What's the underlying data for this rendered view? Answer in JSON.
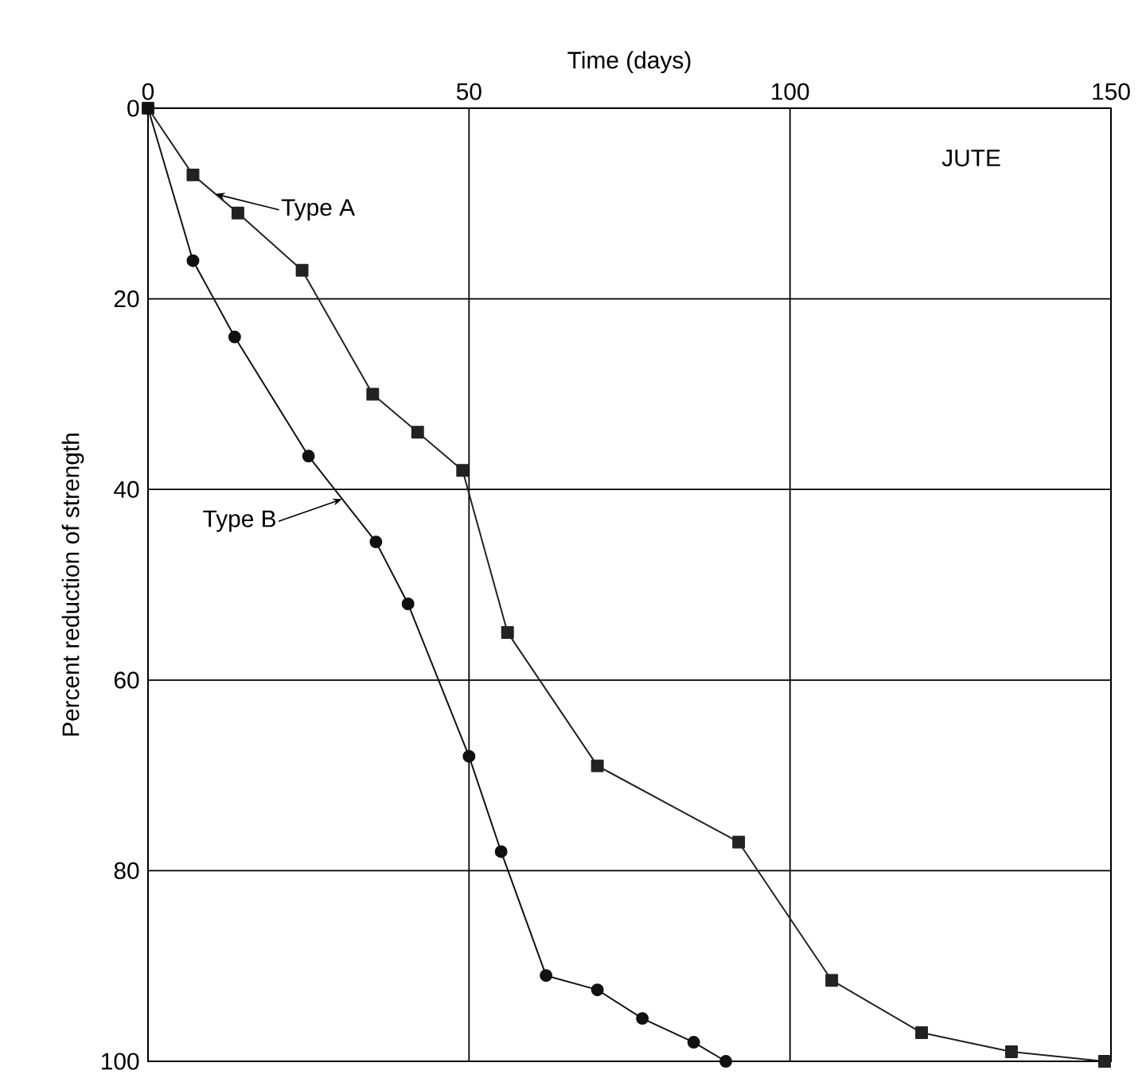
{
  "chart_data": {
    "type": "line",
    "xlabel": "Time (days)",
    "ylabel": "Percent reduction of strength",
    "annotations": [
      "JUTE"
    ],
    "xlim": [
      0,
      150
    ],
    "ylim": [
      100,
      0
    ],
    "xticks": [
      0,
      50,
      100,
      150
    ],
    "yticks": [
      0,
      20,
      40,
      60,
      80,
      100
    ],
    "grid": true,
    "line_style": "solid",
    "series": [
      {
        "name": "Type A",
        "color": "#222222",
        "marker": "square",
        "x": [
          0,
          7,
          14,
          24,
          35,
          42,
          49,
          56,
          70,
          92,
          106.5,
          120.5,
          134.5,
          149
        ],
        "values": [
          0,
          7,
          11,
          17,
          30,
          34,
          38,
          55,
          69,
          77,
          91.5,
          97,
          99,
          100
        ]
      },
      {
        "name": "Type B",
        "color": "#111111",
        "marker": "circle",
        "x": [
          0,
          7,
          13.5,
          25,
          35.5,
          40.5,
          50,
          55,
          62,
          70,
          77,
          85,
          90
        ],
        "values": [
          0,
          16,
          24,
          36.5,
          45.5,
          52,
          68,
          78,
          91,
          92.5,
          95.5,
          98,
          100
        ]
      }
    ]
  }
}
